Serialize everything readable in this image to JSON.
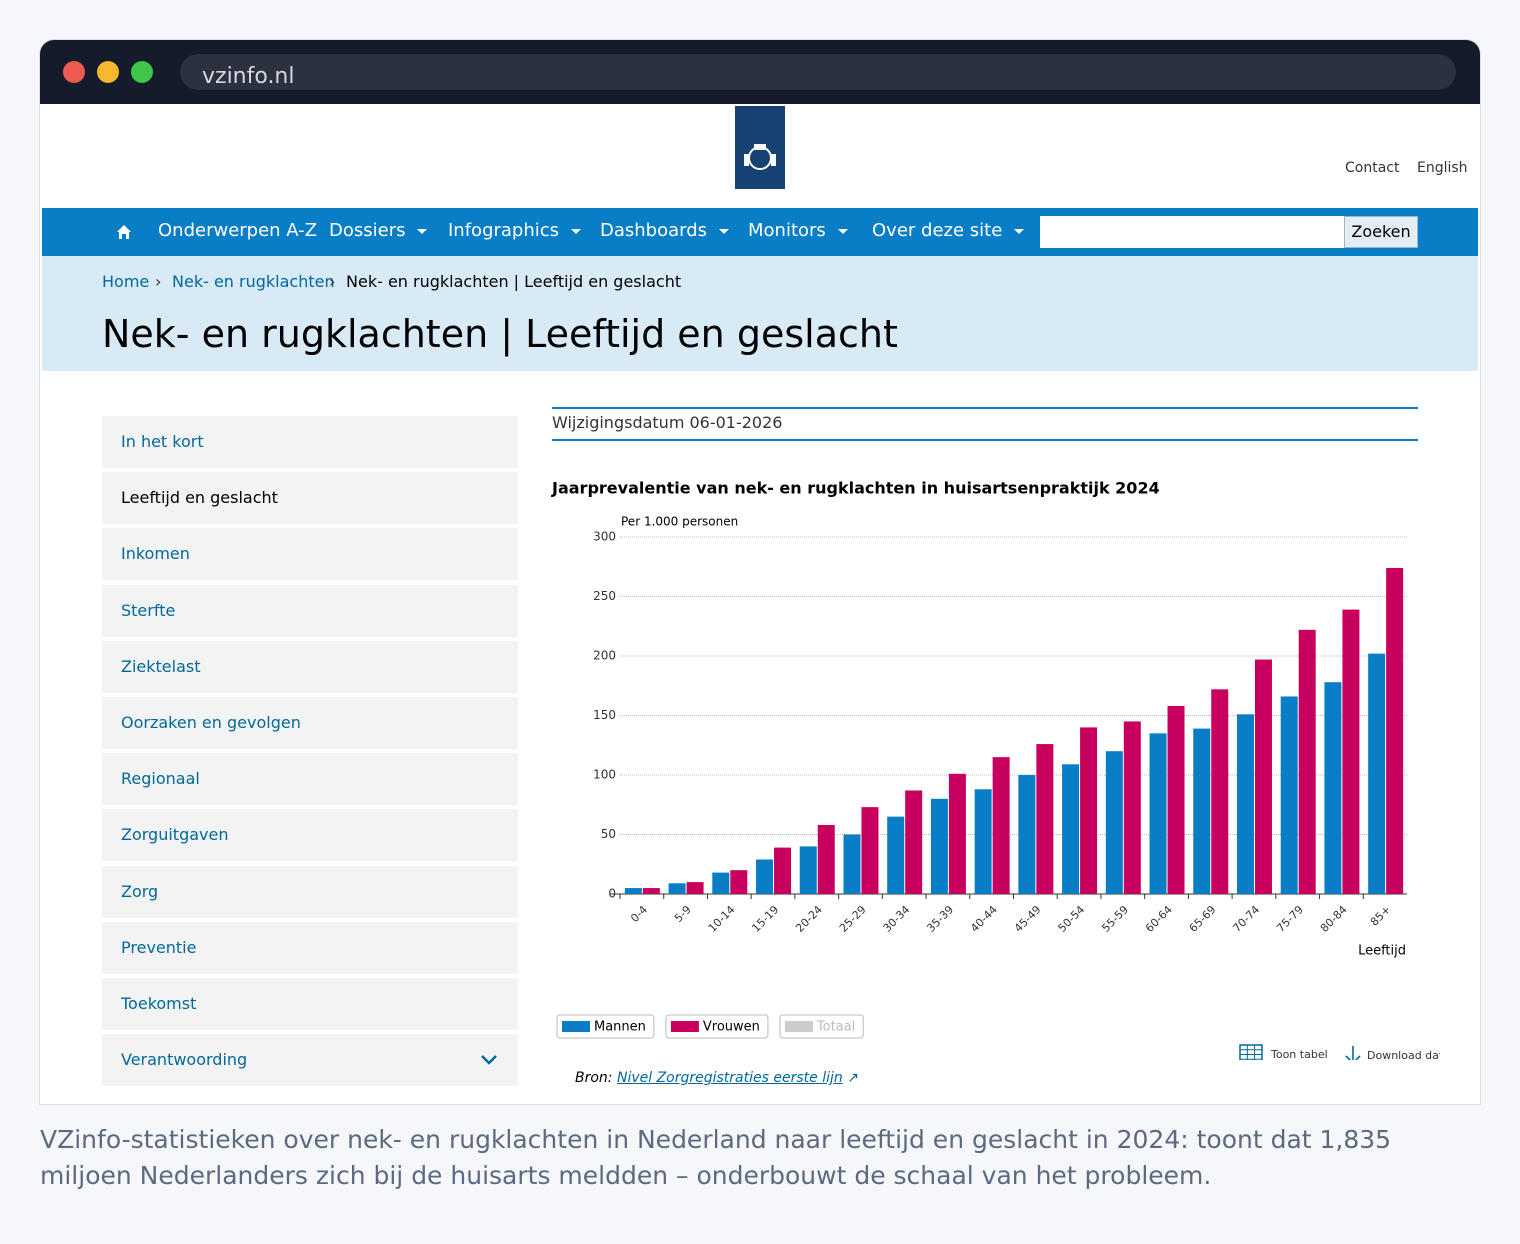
{
  "browser": {
    "url": "vzinfo.nl"
  },
  "header": {
    "links": [
      "Contact",
      "English"
    ]
  },
  "nav": {
    "items": [
      "Onderwerpen A-Z",
      "Dossiers",
      "Infographics",
      "Dashboards",
      "Monitors",
      "Over deze site"
    ],
    "search_button": "Zoeken"
  },
  "breadcrumb": [
    "Home",
    "Nek- en rugklachten",
    "Nek- en rugklachten | Leeftijd en geslacht"
  ],
  "page_title": "Nek- en rugklachten | Leeftijd en geslacht",
  "sidebar": {
    "items": [
      "In het kort",
      "Leeftijd en geslacht",
      "Inkomen",
      "Sterfte",
      "Ziektelast",
      "Oorzaken en gevolgen",
      "Regionaal",
      "Zorguitgaven",
      "Zorg",
      "Preventie",
      "Toekomst",
      "Verantwoording"
    ]
  },
  "modified": "Wijzigingsdatum 06-01-2026",
  "chart_data": {
    "type": "bar",
    "title": "Jaarprevalentie van nek- en rugklachten in huisartsenpraktijk 2024",
    "y_label": "Per 1.000 personen",
    "x_label": "Leeftijd",
    "categories": [
      "0-4",
      "5-9",
      "10-14",
      "15-19",
      "20-24",
      "25-29",
      "30-34",
      "35-39",
      "40-44",
      "45-49",
      "50-54",
      "55-59",
      "60-64",
      "65-69",
      "70-74",
      "75-79",
      "80-84",
      "85+"
    ],
    "series": [
      {
        "name": "Mannen",
        "color": "#0a7dc7",
        "values": [
          5,
          9,
          18,
          29,
          40,
          50,
          65,
          80,
          88,
          100,
          109,
          120,
          135,
          139,
          151,
          166,
          178,
          202
        ]
      },
      {
        "name": "Vrouwen",
        "color": "#c8005e",
        "values": [
          5,
          10,
          20,
          39,
          58,
          73,
          87,
          101,
          115,
          126,
          140,
          145,
          158,
          172,
          197,
          222,
          239,
          274
        ]
      }
    ],
    "legend_inactive": {
      "name": "Totaal",
      "color": "#cccccc"
    },
    "ylim": [
      0,
      300
    ],
    "yticks": [
      0,
      50,
      100,
      150,
      200,
      250,
      300
    ],
    "grid": true
  },
  "chart_tools": [
    "Toon tabel",
    "Download data"
  ],
  "source": {
    "label": "Bron:",
    "link": "Nivel Zorgregistraties eerste lijn"
  },
  "caption": "VZinfo-statistieken over nek- en rugklachten in Nederland naar leeftijd en geslacht in 2024: toont dat 1,835 miljoen Nederlanders zich bij de huisarts meldden – onderbouwt de schaal van het probleem."
}
